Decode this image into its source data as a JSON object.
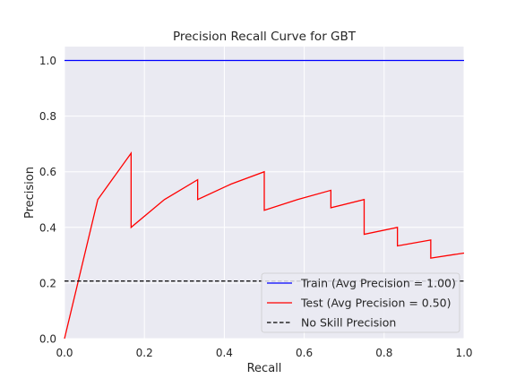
{
  "chart_data": {
    "type": "line",
    "title": "Precision Recall Curve for GBT",
    "xlabel": "Recall",
    "ylabel": "Precision",
    "xlim": [
      0,
      1
    ],
    "ylim": [
      0,
      1.05
    ],
    "xticks": [
      0.0,
      0.2,
      0.4,
      0.6,
      0.8,
      1.0
    ],
    "yticks": [
      0.0,
      0.2,
      0.4,
      0.6,
      0.8,
      1.0
    ],
    "xtick_labels": [
      "0.0",
      "0.2",
      "0.4",
      "0.6",
      "0.8",
      "1.0"
    ],
    "ytick_labels": [
      "0.0",
      "0.2",
      "0.4",
      "0.6",
      "0.8",
      "1.0"
    ],
    "grid": true,
    "background": "#eaeaf2",
    "legend_position": "lower-right",
    "series": [
      {
        "name": "Train (Avg Precision = 1.00)",
        "color": "#0000ff",
        "style": "solid",
        "points": [
          [
            0,
            1.0
          ],
          [
            1,
            1.0
          ]
        ]
      },
      {
        "name": "Test (Avg Precision = 0.50)",
        "color": "#ff0000",
        "style": "solid",
        "points": [
          [
            0,
            0.0
          ],
          [
            0.0833,
            0.5
          ],
          [
            0.1667,
            0.6667
          ],
          [
            0.1667,
            0.4
          ],
          [
            0.25,
            0.5
          ],
          [
            0.3333,
            0.5714
          ],
          [
            0.3333,
            0.5
          ],
          [
            0.4167,
            0.5556
          ],
          [
            0.5,
            0.6
          ],
          [
            0.5,
            0.4615
          ],
          [
            0.5833,
            0.5
          ],
          [
            0.6667,
            0.5333
          ],
          [
            0.6667,
            0.4706
          ],
          [
            0.75,
            0.5
          ],
          [
            0.75,
            0.375
          ],
          [
            0.8333,
            0.4
          ],
          [
            0.8333,
            0.3333
          ],
          [
            0.9167,
            0.3548
          ],
          [
            0.9167,
            0.2895
          ],
          [
            1.0,
            0.3077
          ]
        ]
      },
      {
        "name": "No Skill Precision",
        "color": "#000000",
        "style": "dashed",
        "points": [
          [
            0,
            0.207
          ],
          [
            1,
            0.207
          ]
        ]
      }
    ]
  }
}
